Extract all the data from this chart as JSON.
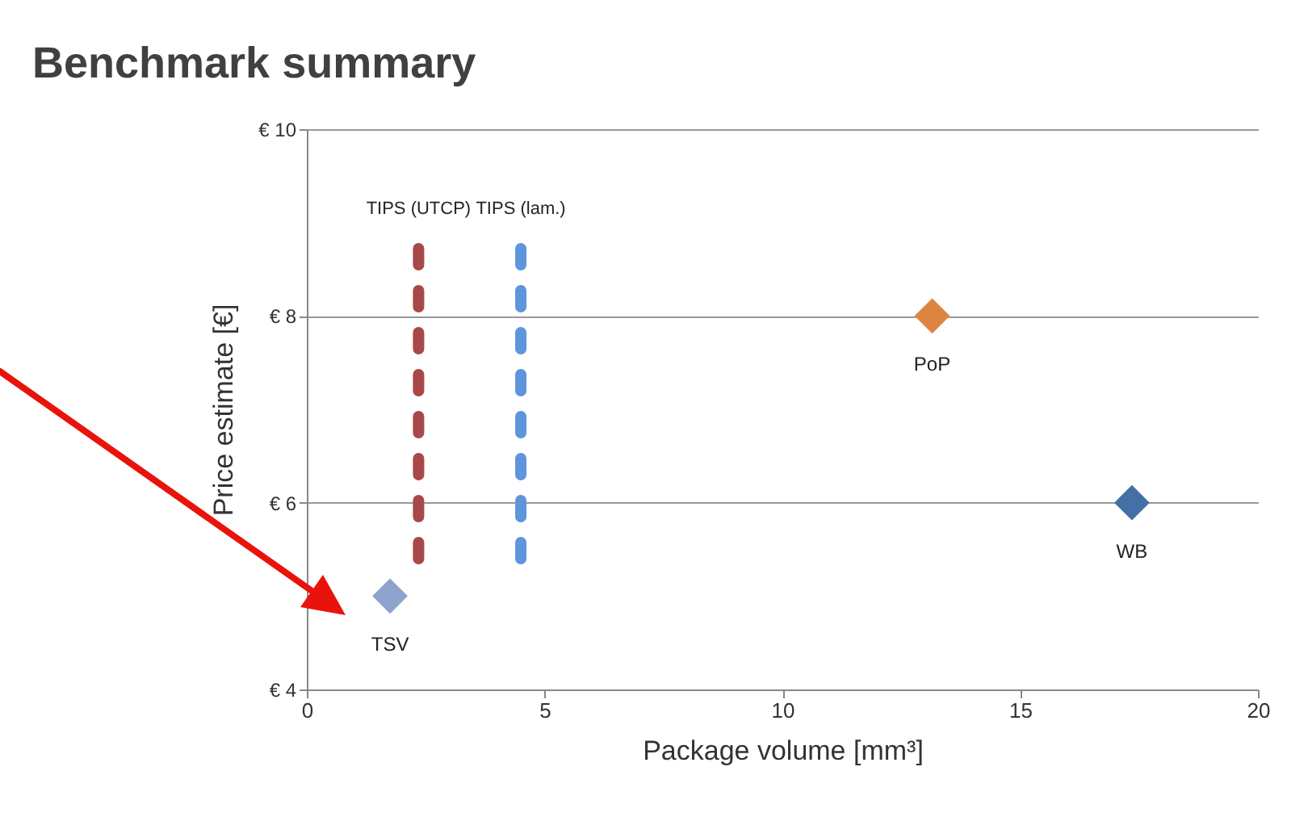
{
  "chart_data": {
    "type": "scatter",
    "title": "Benchmark summary",
    "xlabel": "Package volume [mm³]",
    "ylabel": "Price estimate [€]",
    "xlim": [
      0,
      20
    ],
    "xticks": [
      0,
      5,
      10,
      15,
      20
    ],
    "ylim": [
      4,
      10
    ],
    "yticks": [
      {
        "value": 4,
        "label": "€ 4"
      },
      {
        "value": 6,
        "label": "€ 6"
      },
      {
        "value": 8,
        "label": "€ 8"
      },
      {
        "value": 10,
        "label": "€ 10"
      }
    ],
    "grid": "y",
    "series": [
      {
        "name": "TSV",
        "marker": "diamond",
        "color": "#8ea3cc",
        "x": [
          1.75
        ],
        "values": [
          5.0
        ]
      },
      {
        "name": "PoP",
        "marker": "diamond",
        "color": "#dd8440",
        "x": [
          13.15
        ],
        "values": [
          8.0
        ]
      },
      {
        "name": "WB",
        "marker": "diamond",
        "color": "#4470a6",
        "x": [
          17.35
        ],
        "values": [
          6.0
        ]
      },
      {
        "name": "TIPS (UTCP)",
        "type": "line",
        "line_style": "dashed",
        "color": "#a84848",
        "x": [
          2.35,
          2.35
        ],
        "values": [
          5.4,
          8.8
        ]
      },
      {
        "name": "TIPS (lam.)",
        "type": "line",
        "line_style": "dashed",
        "color": "#5e95dc",
        "x": [
          4.5,
          4.5
        ],
        "values": [
          5.4,
          8.8
        ]
      }
    ]
  }
}
